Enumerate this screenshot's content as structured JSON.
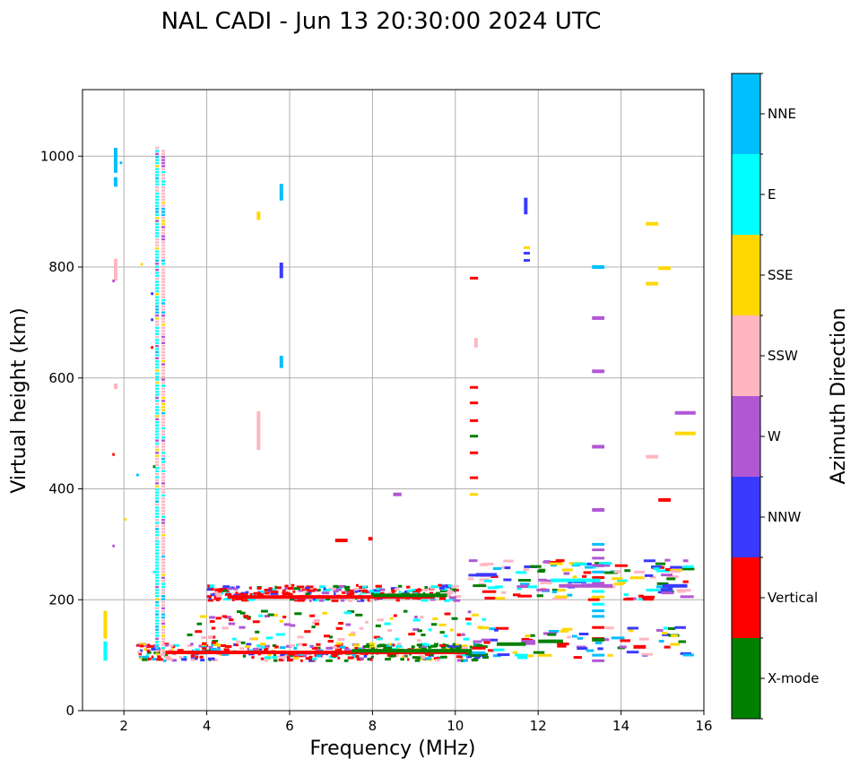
{
  "chart_data": {
    "type": "scatter",
    "title": "NAL CADI - Jun 13 20:30:00 2024 UTC",
    "xlabel": "Frequency (MHz)",
    "ylabel": "Virtual height (km)",
    "xlim": [
      1,
      16
    ],
    "ylim": [
      0,
      1120
    ],
    "xticks": [
      2,
      4,
      6,
      8,
      10,
      12,
      14,
      16
    ],
    "yticks": [
      0,
      200,
      400,
      600,
      800,
      1000
    ],
    "grid": true,
    "colorbar": {
      "label": "Azimuth Direction",
      "categories": [
        {
          "name": "X-mode",
          "color": "#008000"
        },
        {
          "name": "Vertical",
          "color": "#ff0000"
        },
        {
          "name": "NNW",
          "color": "#3a3aff"
        },
        {
          "name": "W",
          "color": "#b157d4"
        },
        {
          "name": "SSW",
          "color": "#ffb6c1"
        },
        {
          "name": "SSE",
          "color": "#ffd700"
        },
        {
          "name": "E",
          "color": "#00ffff"
        },
        {
          "name": "NNE",
          "color": "#00bfff"
        }
      ]
    },
    "segments": [
      {
        "x": 1.8,
        "y": [
          970,
          1015
        ],
        "c": "NNE"
      },
      {
        "x": 1.8,
        "y": [
          945,
          962
        ],
        "c": "NNE"
      },
      {
        "x": 1.8,
        "y": [
          775,
          815
        ],
        "c": "SSW"
      },
      {
        "x": 1.8,
        "y": [
          580,
          590
        ],
        "c": "SSW"
      },
      {
        "x": 1.55,
        "y": [
          130,
          180
        ],
        "c": "SSE"
      },
      {
        "x": 1.55,
        "y": [
          90,
          125
        ],
        "c": "E"
      },
      {
        "x": 2.8,
        "y": [
          100,
          1015
        ],
        "c": "E",
        "dashed": true
      },
      {
        "x": 2.95,
        "y": [
          100,
          1010
        ],
        "c": "SSW",
        "dashed": true
      },
      {
        "x": 5.25,
        "y": [
          885,
          900
        ],
        "c": "SSE"
      },
      {
        "x": 5.25,
        "y": [
          470,
          540
        ],
        "c": "SSW"
      },
      {
        "x": 5.8,
        "y": [
          920,
          950
        ],
        "c": "NNE"
      },
      {
        "x": 5.8,
        "y": [
          780,
          808
        ],
        "c": "NNW"
      },
      {
        "x": 5.8,
        "y": [
          618,
          640
        ],
        "c": "NNE"
      },
      {
        "x": 11.7,
        "y": [
          895,
          925
        ],
        "c": "NNW"
      },
      {
        "x": 10.5,
        "y": [
          655,
          672
        ],
        "c": "SSW"
      }
    ],
    "bars": [
      {
        "x0": 3.0,
        "x1": 10.3,
        "y": 105,
        "c": "Vertical"
      },
      {
        "x0": 7.5,
        "x1": 10.4,
        "y": 108,
        "c": "X-mode"
      },
      {
        "x0": 4.5,
        "x1": 9.5,
        "y": 205,
        "c": "Vertical"
      },
      {
        "x0": 8.0,
        "x1": 9.8,
        "y": 208,
        "c": "X-mode"
      },
      {
        "x0": 10.5,
        "x1": 11.0,
        "y": 245,
        "c": "NNW"
      },
      {
        "x0": 12.3,
        "x1": 13.5,
        "y": 235,
        "c": "E"
      },
      {
        "x0": 12.5,
        "x1": 13.8,
        "y": 225,
        "c": "W"
      },
      {
        "x0": 15.0,
        "x1": 15.6,
        "y": 225,
        "c": "NNW"
      },
      {
        "x0": 15.3,
        "x1": 15.8,
        "y": 500,
        "c": "SSE"
      },
      {
        "x0": 15.3,
        "x1": 15.8,
        "y": 537,
        "c": "W"
      },
      {
        "x0": 14.6,
        "x1": 14.9,
        "y": 878,
        "c": "SSE"
      },
      {
        "x0": 14.9,
        "x1": 15.2,
        "y": 798,
        "c": "SSE"
      },
      {
        "x0": 14.6,
        "x1": 14.9,
        "y": 770,
        "c": "SSE"
      },
      {
        "x0": 14.9,
        "x1": 15.2,
        "y": 380,
        "c": "Vertical"
      },
      {
        "x0": 14.6,
        "x1": 14.9,
        "y": 458,
        "c": "SSW"
      },
      {
        "x0": 13.3,
        "x1": 13.6,
        "y": 800,
        "c": "NNE"
      },
      {
        "x0": 13.3,
        "x1": 13.6,
        "y": 708,
        "c": "W"
      },
      {
        "x0": 13.3,
        "x1": 13.6,
        "y": 612,
        "c": "W"
      },
      {
        "x0": 13.3,
        "x1": 13.6,
        "y": 476,
        "c": "W"
      },
      {
        "x0": 13.3,
        "x1": 13.6,
        "y": 362,
        "c": "W"
      },
      {
        "x0": 8.5,
        "x1": 8.7,
        "y": 390,
        "c": "W"
      },
      {
        "x0": 7.1,
        "x1": 7.4,
        "y": 307,
        "c": "Vertical"
      },
      {
        "x0": 7.9,
        "x1": 8.0,
        "y": 310,
        "c": "Vertical"
      },
      {
        "x0": 13.3,
        "x1": 13.6,
        "y": 128,
        "c": "X-mode"
      },
      {
        "x0": 14.3,
        "x1": 14.6,
        "y": 115,
        "c": "Vertical"
      },
      {
        "x0": 12.0,
        "x1": 12.6,
        "y": 125,
        "c": "X-mode"
      },
      {
        "x0": 11.0,
        "x1": 11.7,
        "y": 120,
        "c": "X-mode"
      }
    ],
    "point_cloud": {
      "note": "scattered short echo marks; colours by azimuth category",
      "seed": 7
    }
  }
}
